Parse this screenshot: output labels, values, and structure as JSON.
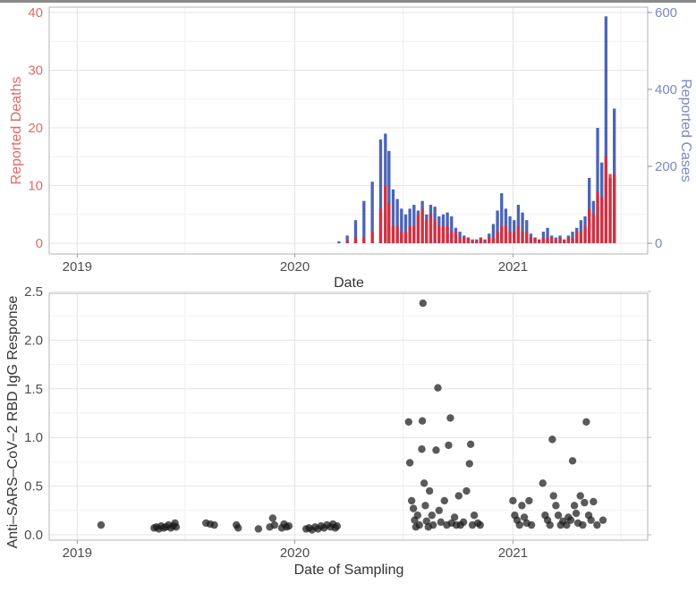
{
  "chart_data": [
    {
      "type": "bar",
      "xlabel": "Date",
      "ylabel_left": "Reported Deaths",
      "ylabel_right": "Reported Cases",
      "x_ticks": [
        "2019",
        "2020",
        "2021"
      ],
      "x_range": [
        "2018-11-15",
        "2021-08-15"
      ],
      "y_left_ticks": [
        "0",
        "10",
        "20",
        "30",
        "40"
      ],
      "y_left_range": [
        0,
        40
      ],
      "y_right_ticks": [
        "0",
        "200",
        "400",
        "600"
      ],
      "y_right_range": [
        0,
        600
      ],
      "grid": true,
      "colors": {
        "deaths": "#e8282b",
        "cases": "#3953ad",
        "deaths_axis": "#e06a6a",
        "cases_axis": "#7b89c4"
      },
      "series": [
        {
          "name": "Reported Cases",
          "axis": "right",
          "points": [
            [
              "2020-03-15",
              5
            ],
            [
              "2020-03-29",
              20
            ],
            [
              "2020-04-12",
              60
            ],
            [
              "2020-04-26",
              110
            ],
            [
              "2020-05-10",
              160
            ],
            [
              "2020-05-24",
              270
            ],
            [
              "2020-06-01",
              285
            ],
            [
              "2020-06-07",
              240
            ],
            [
              "2020-06-14",
              140
            ],
            [
              "2020-06-21",
              115
            ],
            [
              "2020-06-28",
              90
            ],
            [
              "2020-07-05",
              75
            ],
            [
              "2020-07-12",
              90
            ],
            [
              "2020-07-19",
              100
            ],
            [
              "2020-07-26",
              85
            ],
            [
              "2020-08-02",
              110
            ],
            [
              "2020-08-09",
              75
            ],
            [
              "2020-08-16",
              100
            ],
            [
              "2020-08-23",
              95
            ],
            [
              "2020-08-30",
              70
            ],
            [
              "2020-09-06",
              75
            ],
            [
              "2020-09-13",
              80
            ],
            [
              "2020-09-20",
              70
            ],
            [
              "2020-09-27",
              40
            ],
            [
              "2020-10-04",
              30
            ],
            [
              "2020-10-11",
              20
            ],
            [
              "2020-10-18",
              15
            ],
            [
              "2020-10-25",
              10
            ],
            [
              "2020-11-01",
              10
            ],
            [
              "2020-11-08",
              15
            ],
            [
              "2020-11-15",
              10
            ],
            [
              "2020-11-22",
              25
            ],
            [
              "2020-11-29",
              50
            ],
            [
              "2020-12-06",
              85
            ],
            [
              "2020-12-13",
              130
            ],
            [
              "2020-12-20",
              90
            ],
            [
              "2020-12-27",
              70
            ],
            [
              "2021-01-03",
              60
            ],
            [
              "2021-01-10",
              100
            ],
            [
              "2021-01-17",
              80
            ],
            [
              "2021-01-24",
              60
            ],
            [
              "2021-01-31",
              25
            ],
            [
              "2021-02-07",
              15
            ],
            [
              "2021-02-14",
              10
            ],
            [
              "2021-02-21",
              30
            ],
            [
              "2021-02-28",
              40
            ],
            [
              "2021-03-07",
              20
            ],
            [
              "2021-03-14",
              15
            ],
            [
              "2021-03-21",
              20
            ],
            [
              "2021-03-28",
              10
            ],
            [
              "2021-04-04",
              20
            ],
            [
              "2021-04-11",
              30
            ],
            [
              "2021-04-18",
              40
            ],
            [
              "2021-04-25",
              60
            ],
            [
              "2021-05-02",
              70
            ],
            [
              "2021-05-09",
              170
            ],
            [
              "2021-05-16",
              110
            ],
            [
              "2021-05-23",
              300
            ],
            [
              "2021-05-30",
              210
            ],
            [
              "2021-06-06",
              590
            ],
            [
              "2021-06-13",
              170
            ],
            [
              "2021-06-20",
              350
            ]
          ]
        },
        {
          "name": "Reported Deaths",
          "axis": "left",
          "points": [
            [
              "2020-03-15",
              0
            ],
            [
              "2020-03-29",
              0.5
            ],
            [
              "2020-04-12",
              1
            ],
            [
              "2020-04-26",
              1
            ],
            [
              "2020-05-10",
              2
            ],
            [
              "2020-05-24",
              6
            ],
            [
              "2020-06-01",
              10
            ],
            [
              "2020-06-07",
              7
            ],
            [
              "2020-06-14",
              3
            ],
            [
              "2020-06-21",
              3
            ],
            [
              "2020-06-28",
              2
            ],
            [
              "2020-07-05",
              2
            ],
            [
              "2020-07-12",
              3
            ],
            [
              "2020-07-19",
              3
            ],
            [
              "2020-07-26",
              5
            ],
            [
              "2020-08-02",
              6
            ],
            [
              "2020-08-09",
              4
            ],
            [
              "2020-08-16",
              5
            ],
            [
              "2020-08-23",
              4
            ],
            [
              "2020-08-30",
              3
            ],
            [
              "2020-09-06",
              3
            ],
            [
              "2020-09-13",
              3
            ],
            [
              "2020-09-20",
              2
            ],
            [
              "2020-09-27",
              2
            ],
            [
              "2020-10-04",
              1
            ],
            [
              "2020-10-11",
              1
            ],
            [
              "2020-10-18",
              1
            ],
            [
              "2020-10-25",
              0.5
            ],
            [
              "2020-11-01",
              0.5
            ],
            [
              "2020-11-08",
              1
            ],
            [
              "2020-11-15",
              0.5
            ],
            [
              "2020-11-22",
              1
            ],
            [
              "2020-11-29",
              1
            ],
            [
              "2020-12-06",
              2
            ],
            [
              "2020-12-13",
              3
            ],
            [
              "2020-12-20",
              3
            ],
            [
              "2020-12-27",
              2
            ],
            [
              "2021-01-03",
              2
            ],
            [
              "2021-01-10",
              3
            ],
            [
              "2021-01-17",
              2
            ],
            [
              "2021-01-24",
              2
            ],
            [
              "2021-01-31",
              1
            ],
            [
              "2021-02-07",
              1
            ],
            [
              "2021-02-14",
              0.5
            ],
            [
              "2021-02-21",
              1
            ],
            [
              "2021-02-28",
              1
            ],
            [
              "2021-03-07",
              1
            ],
            [
              "2021-03-14",
              0.5
            ],
            [
              "2021-03-21",
              1
            ],
            [
              "2021-03-28",
              0.5
            ],
            [
              "2021-04-04",
              1
            ],
            [
              "2021-04-11",
              1
            ],
            [
              "2021-04-18",
              2
            ],
            [
              "2021-04-25",
              2
            ],
            [
              "2021-05-02",
              3
            ],
            [
              "2021-05-09",
              6
            ],
            [
              "2021-05-16",
              5
            ],
            [
              "2021-05-23",
              9
            ],
            [
              "2021-05-30",
              8
            ],
            [
              "2021-06-06",
              15
            ],
            [
              "2021-06-13",
              12
            ],
            [
              "2021-06-20",
              12
            ]
          ]
        }
      ]
    },
    {
      "type": "scatter",
      "xlabel": "Date of Sampling",
      "ylabel": "Anti–SARS–CoV–2 RBD IgG Response",
      "x_ticks": [
        "2019",
        "2020",
        "2021"
      ],
      "x_range": [
        "2018-11-15",
        "2021-08-15"
      ],
      "y_ticks": [
        "0.0",
        "0.5",
        "1.0",
        "1.5",
        "2.0",
        "2.5"
      ],
      "ylim": [
        0,
        2.5
      ],
      "grid": true,
      "colors": {
        "points": "#1a1a1a"
      },
      "series": [
        {
          "points": [
            [
              "2019-02-10",
              0.1
            ],
            [
              "2019-05-10",
              0.07
            ],
            [
              "2019-05-14",
              0.08
            ],
            [
              "2019-05-18",
              0.06
            ],
            [
              "2019-05-22",
              0.09
            ],
            [
              "2019-05-26",
              0.07
            ],
            [
              "2019-05-30",
              0.08
            ],
            [
              "2019-06-03",
              0.1
            ],
            [
              "2019-06-07",
              0.07
            ],
            [
              "2019-06-11",
              0.09
            ],
            [
              "2019-06-14",
              0.12
            ],
            [
              "2019-06-16",
              0.08
            ],
            [
              "2019-08-05",
              0.12
            ],
            [
              "2019-08-12",
              0.11
            ],
            [
              "2019-08-19",
              0.1
            ],
            [
              "2019-09-25",
              0.1
            ],
            [
              "2019-09-28",
              0.07
            ],
            [
              "2019-11-01",
              0.06
            ],
            [
              "2019-11-20",
              0.08
            ],
            [
              "2019-11-25",
              0.17
            ],
            [
              "2019-11-28",
              0.1
            ],
            [
              "2019-12-10",
              0.07
            ],
            [
              "2019-12-14",
              0.11
            ],
            [
              "2019-12-18",
              0.08
            ],
            [
              "2019-12-22",
              0.09
            ],
            [
              "2020-01-20",
              0.06
            ],
            [
              "2020-01-25",
              0.07
            ],
            [
              "2020-01-30",
              0.05
            ],
            [
              "2020-02-04",
              0.08
            ],
            [
              "2020-02-09",
              0.06
            ],
            [
              "2020-02-14",
              0.09
            ],
            [
              "2020-02-19",
              0.07
            ],
            [
              "2020-02-24",
              0.1
            ],
            [
              "2020-03-01",
              0.08
            ],
            [
              "2020-03-05",
              0.11
            ],
            [
              "2020-03-09",
              0.07
            ],
            [
              "2020-03-12",
              0.09
            ],
            [
              "2020-07-10",
              1.16
            ],
            [
              "2020-07-12",
              0.74
            ],
            [
              "2020-07-15",
              0.35
            ],
            [
              "2020-07-18",
              0.27
            ],
            [
              "2020-07-20",
              0.15
            ],
            [
              "2020-07-22",
              0.08
            ],
            [
              "2020-07-25",
              0.2
            ],
            [
              "2020-07-28",
              0.1
            ],
            [
              "2020-08-01",
              0.88
            ],
            [
              "2020-08-02",
              1.17
            ],
            [
              "2020-08-03",
              2.38
            ],
            [
              "2020-08-05",
              0.53
            ],
            [
              "2020-08-07",
              0.3
            ],
            [
              "2020-08-09",
              0.14
            ],
            [
              "2020-08-12",
              0.08
            ],
            [
              "2020-08-14",
              0.45
            ],
            [
              "2020-08-18",
              0.2
            ],
            [
              "2020-08-20",
              0.1
            ],
            [
              "2020-08-25",
              0.87
            ],
            [
              "2020-08-28",
              1.51
            ],
            [
              "2020-08-30",
              0.25
            ],
            [
              "2020-09-02",
              0.13
            ],
            [
              "2020-09-08",
              0.35
            ],
            [
              "2020-09-12",
              0.1
            ],
            [
              "2020-09-15",
              0.92
            ],
            [
              "2020-09-18",
              1.2
            ],
            [
              "2020-09-20",
              0.12
            ],
            [
              "2020-09-25",
              0.18
            ],
            [
              "2020-09-28",
              0.1
            ],
            [
              "2020-10-02",
              0.4
            ],
            [
              "2020-10-05",
              0.1
            ],
            [
              "2020-10-10",
              0.13
            ],
            [
              "2020-10-15",
              0.45
            ],
            [
              "2020-10-20",
              0.73
            ],
            [
              "2020-10-22",
              0.93
            ],
            [
              "2020-10-25",
              0.1
            ],
            [
              "2020-10-28",
              0.2
            ],
            [
              "2020-11-03",
              0.12
            ],
            [
              "2020-11-07",
              0.1
            ],
            [
              "2021-01-01",
              0.35
            ],
            [
              "2021-01-04",
              0.2
            ],
            [
              "2021-01-08",
              0.15
            ],
            [
              "2021-01-12",
              0.1
            ],
            [
              "2021-01-16",
              0.3
            ],
            [
              "2021-01-20",
              0.18
            ],
            [
              "2021-01-24",
              0.12
            ],
            [
              "2021-01-28",
              0.35
            ],
            [
              "2021-02-01",
              0.1
            ],
            [
              "2021-02-20",
              0.53
            ],
            [
              "2021-02-24",
              0.2
            ],
            [
              "2021-02-28",
              0.15
            ],
            [
              "2021-03-04",
              0.1
            ],
            [
              "2021-03-08",
              0.98
            ],
            [
              "2021-03-10",
              0.4
            ],
            [
              "2021-03-14",
              0.3
            ],
            [
              "2021-03-18",
              0.2
            ],
            [
              "2021-03-22",
              0.1
            ],
            [
              "2021-03-26",
              0.14
            ],
            [
              "2021-04-01",
              0.1
            ],
            [
              "2021-04-04",
              0.18
            ],
            [
              "2021-04-08",
              0.15
            ],
            [
              "2021-04-11",
              0.76
            ],
            [
              "2021-04-14",
              0.3
            ],
            [
              "2021-04-17",
              0.22
            ],
            [
              "2021-04-20",
              0.12
            ],
            [
              "2021-04-24",
              0.4
            ],
            [
              "2021-04-28",
              0.1
            ],
            [
              "2021-05-01",
              0.33
            ],
            [
              "2021-05-04",
              1.16
            ],
            [
              "2021-05-08",
              0.2
            ],
            [
              "2021-05-12",
              0.15
            ],
            [
              "2021-05-16",
              0.34
            ],
            [
              "2021-05-22",
              0.1
            ],
            [
              "2021-06-01",
              0.15
            ]
          ]
        }
      ]
    }
  ]
}
